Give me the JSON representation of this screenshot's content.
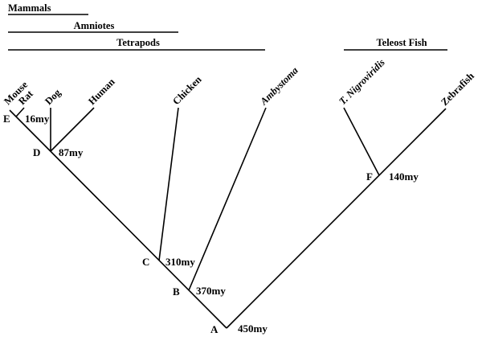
{
  "groups": [
    {
      "key": "mammals",
      "label": "Mammals"
    },
    {
      "key": "amniotes",
      "label": "Amniotes"
    },
    {
      "key": "tetrapods",
      "label": "Tetrapods"
    },
    {
      "key": "teleost",
      "label": "Teleost Fish"
    }
  ],
  "taxa": [
    {
      "key": "mouse",
      "label": "Mouse",
      "italic": false
    },
    {
      "key": "rat",
      "label": "Rat",
      "italic": false
    },
    {
      "key": "dog",
      "label": "Dog",
      "italic": false
    },
    {
      "key": "human",
      "label": "Human",
      "italic": false
    },
    {
      "key": "chicken",
      "label": "Chicken",
      "italic": false
    },
    {
      "key": "ambystoma",
      "label": "Ambystoma",
      "italic": true
    },
    {
      "key": "tnigroviridis",
      "label": "T. Nigroviridis",
      "italic": true
    },
    {
      "key": "zebrafish",
      "label": "Zebrafish",
      "italic": false
    }
  ],
  "nodes": [
    {
      "key": "E",
      "letter": "E",
      "age": "16my"
    },
    {
      "key": "D",
      "letter": "D",
      "age": "87my"
    },
    {
      "key": "C",
      "letter": "C",
      "age": "310my"
    },
    {
      "key": "B",
      "letter": "B",
      "age": "370my"
    },
    {
      "key": "F",
      "letter": "F",
      "age": "140my"
    },
    {
      "key": "A",
      "letter": "A",
      "age": "450my"
    }
  ]
}
